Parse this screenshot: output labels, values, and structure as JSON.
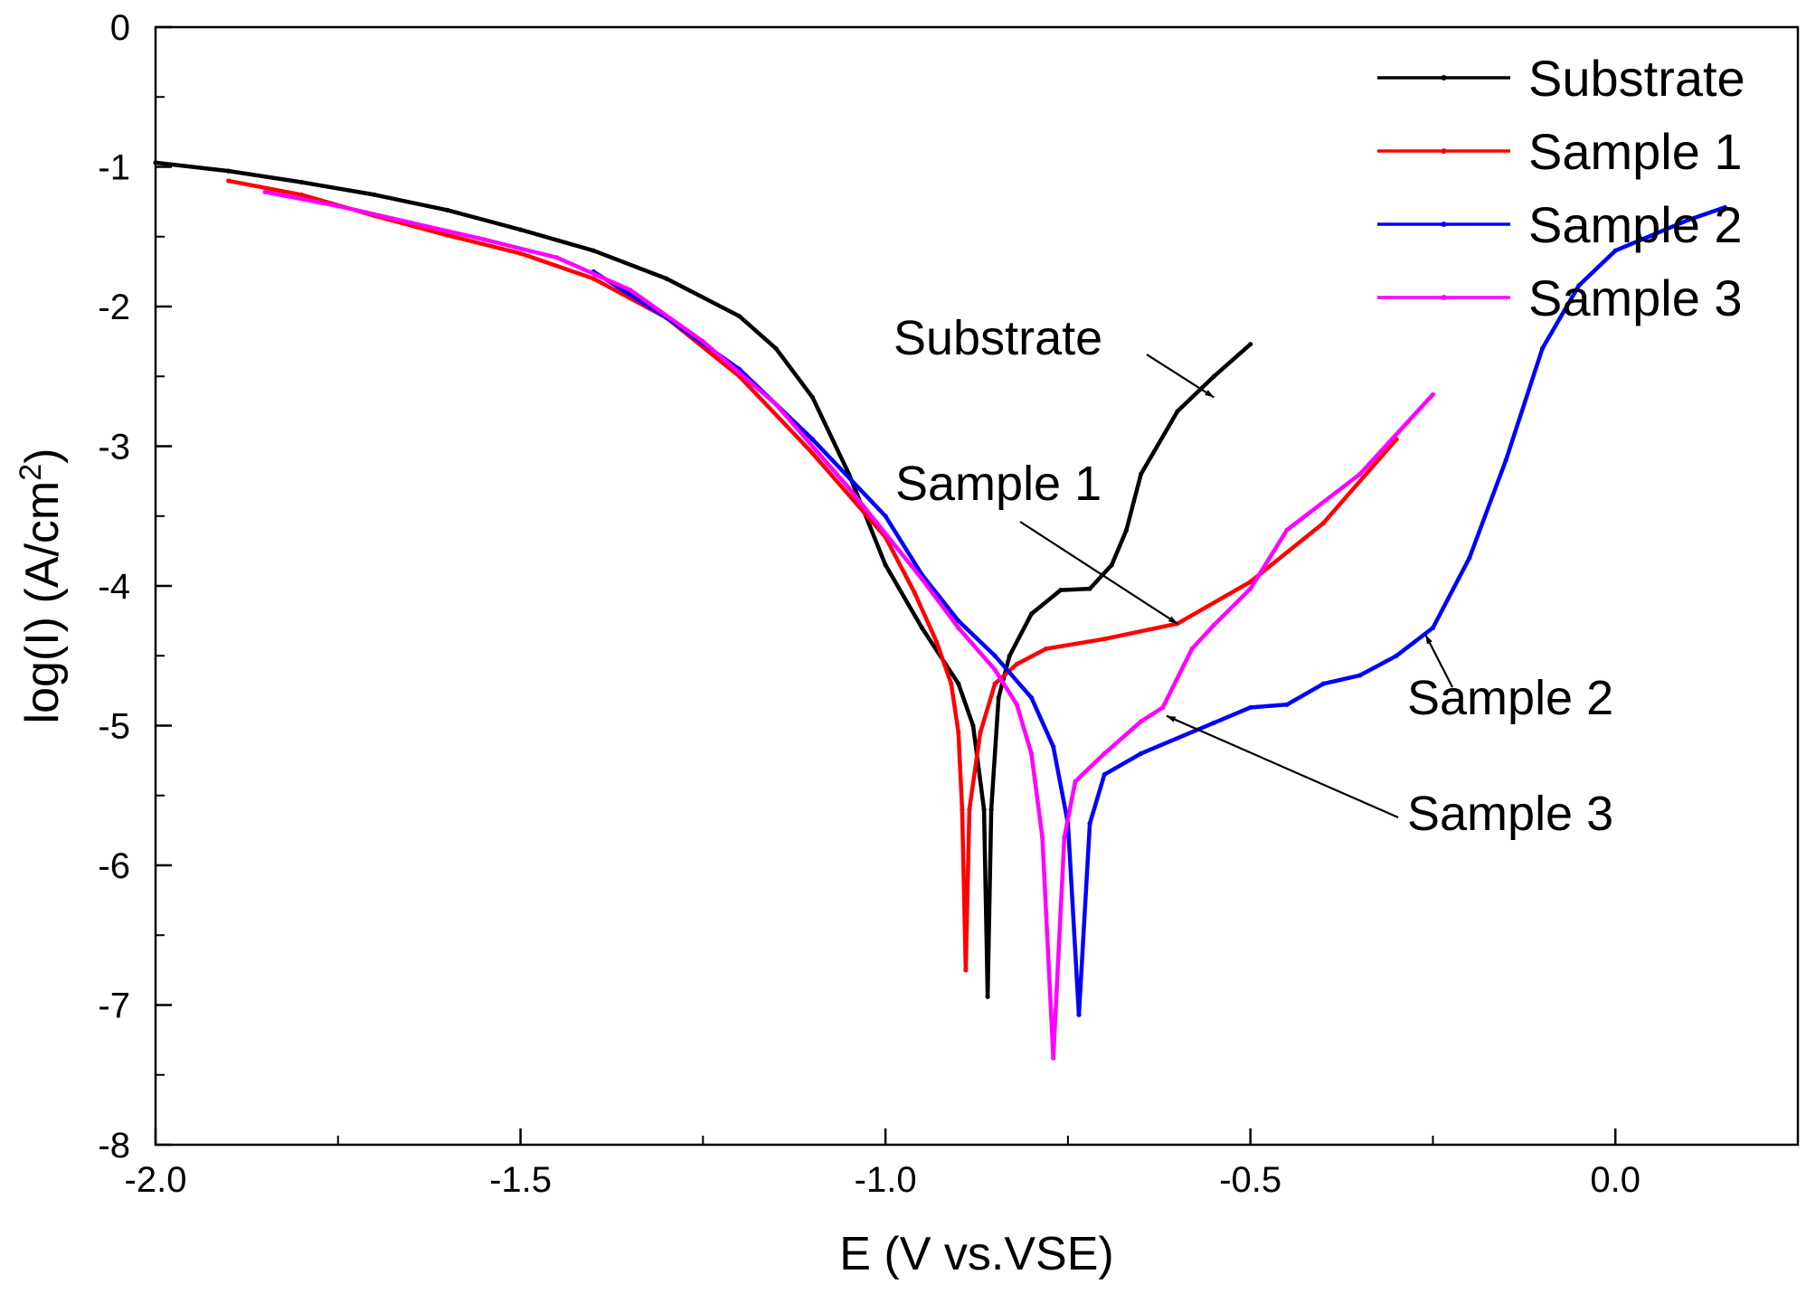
{
  "chart_data": {
    "type": "line",
    "title": "",
    "xlabel": "E (V vs.VSE)",
    "ylabel_main": "log(I) (A/cm",
    "ylabel_sup": "2",
    "ylabel_tail": ")",
    "xlim": [
      -2.0,
      0.25
    ],
    "ylim": [
      -8,
      0
    ],
    "xticks": [
      -2.0,
      -1.5,
      -1.0,
      -0.5,
      0.0
    ],
    "xtick_labels": [
      "-2.0",
      "-1.5",
      "-1.0",
      "-0.5",
      "0.0"
    ],
    "yticks": [
      0,
      -1,
      -2,
      -3,
      -4,
      -5,
      -6,
      -7,
      -8
    ],
    "ytick_labels": [
      "0",
      "-1",
      "-2",
      "-3",
      "-4",
      "-5",
      "-6",
      "-7",
      "-8"
    ],
    "legend_position": "top-right",
    "series": [
      {
        "name": "Substrate",
        "color": "#000000",
        "points": [
          [
            -2.0,
            -0.97
          ],
          [
            -1.9,
            -1.03
          ],
          [
            -1.8,
            -1.11
          ],
          [
            -1.7,
            -1.2
          ],
          [
            -1.6,
            -1.31
          ],
          [
            -1.5,
            -1.45
          ],
          [
            -1.4,
            -1.6
          ],
          [
            -1.3,
            -1.8
          ],
          [
            -1.2,
            -2.07
          ],
          [
            -1.15,
            -2.3
          ],
          [
            -1.1,
            -2.65
          ],
          [
            -1.05,
            -3.2
          ],
          [
            -1.0,
            -3.85
          ],
          [
            -0.95,
            -4.3
          ],
          [
            -0.9,
            -4.7
          ],
          [
            -0.88,
            -5.0
          ],
          [
            -0.865,
            -5.6
          ],
          [
            -0.86,
            -6.94
          ],
          [
            -0.855,
            -5.6
          ],
          [
            -0.845,
            -4.8
          ],
          [
            -0.83,
            -4.5
          ],
          [
            -0.8,
            -4.2
          ],
          [
            -0.76,
            -4.03
          ],
          [
            -0.72,
            -4.02
          ],
          [
            -0.69,
            -3.85
          ],
          [
            -0.67,
            -3.6
          ],
          [
            -0.65,
            -3.2
          ],
          [
            -0.6,
            -2.75
          ],
          [
            -0.55,
            -2.5
          ],
          [
            -0.5,
            -2.27
          ]
        ]
      },
      {
        "name": "Sample 1",
        "color": "#ff0000",
        "points": [
          [
            -1.9,
            -1.1
          ],
          [
            -1.8,
            -1.2
          ],
          [
            -1.7,
            -1.35
          ],
          [
            -1.6,
            -1.49
          ],
          [
            -1.5,
            -1.62
          ],
          [
            -1.4,
            -1.8
          ],
          [
            -1.3,
            -2.08
          ],
          [
            -1.2,
            -2.5
          ],
          [
            -1.1,
            -3.05
          ],
          [
            -1.0,
            -3.65
          ],
          [
            -0.96,
            -4.05
          ],
          [
            -0.93,
            -4.4
          ],
          [
            -0.91,
            -4.7
          ],
          [
            -0.9,
            -5.05
          ],
          [
            -0.895,
            -5.6
          ],
          [
            -0.89,
            -6.75
          ],
          [
            -0.885,
            -5.6
          ],
          [
            -0.87,
            -5.05
          ],
          [
            -0.85,
            -4.7
          ],
          [
            -0.82,
            -4.56
          ],
          [
            -0.78,
            -4.45
          ],
          [
            -0.7,
            -4.38
          ],
          [
            -0.6,
            -4.27
          ],
          [
            -0.5,
            -3.97
          ],
          [
            -0.4,
            -3.55
          ],
          [
            -0.3,
            -2.95
          ]
        ]
      },
      {
        "name": "Sample 2",
        "color": "#0000ff",
        "points": [
          [
            -1.4,
            -1.75
          ],
          [
            -1.3,
            -2.08
          ],
          [
            -1.2,
            -2.45
          ],
          [
            -1.1,
            -2.95
          ],
          [
            -1.0,
            -3.5
          ],
          [
            -0.95,
            -3.92
          ],
          [
            -0.9,
            -4.25
          ],
          [
            -0.85,
            -4.5
          ],
          [
            -0.8,
            -4.8
          ],
          [
            -0.77,
            -5.15
          ],
          [
            -0.75,
            -5.7
          ],
          [
            -0.735,
            -7.07
          ],
          [
            -0.72,
            -5.7
          ],
          [
            -0.7,
            -5.35
          ],
          [
            -0.65,
            -5.2
          ],
          [
            -0.55,
            -4.98
          ],
          [
            -0.5,
            -4.87
          ],
          [
            -0.45,
            -4.85
          ],
          [
            -0.4,
            -4.7
          ],
          [
            -0.35,
            -4.64
          ],
          [
            -0.3,
            -4.5
          ],
          [
            -0.25,
            -4.3
          ],
          [
            -0.2,
            -3.8
          ],
          [
            -0.15,
            -3.1
          ],
          [
            -0.1,
            -2.3
          ],
          [
            -0.05,
            -1.85
          ],
          [
            0.0,
            -1.6
          ],
          [
            0.1,
            -1.38
          ],
          [
            0.15,
            -1.29
          ]
        ]
      },
      {
        "name": "Sample 3",
        "color": "#ff00ff",
        "points": [
          [
            -1.85,
            -1.18
          ],
          [
            -1.75,
            -1.28
          ],
          [
            -1.65,
            -1.4
          ],
          [
            -1.55,
            -1.52
          ],
          [
            -1.45,
            -1.65
          ],
          [
            -1.35,
            -1.88
          ],
          [
            -1.25,
            -2.25
          ],
          [
            -1.15,
            -2.7
          ],
          [
            -1.05,
            -3.3
          ],
          [
            -0.95,
            -3.95
          ],
          [
            -0.9,
            -4.3
          ],
          [
            -0.85,
            -4.6
          ],
          [
            -0.82,
            -4.85
          ],
          [
            -0.8,
            -5.2
          ],
          [
            -0.785,
            -5.8
          ],
          [
            -0.77,
            -7.38
          ],
          [
            -0.755,
            -5.8
          ],
          [
            -0.74,
            -5.4
          ],
          [
            -0.7,
            -5.2
          ],
          [
            -0.65,
            -4.97
          ],
          [
            -0.62,
            -4.87
          ],
          [
            -0.58,
            -4.45
          ],
          [
            -0.55,
            -4.28
          ],
          [
            -0.5,
            -4.02
          ],
          [
            -0.45,
            -3.6
          ],
          [
            -0.35,
            -3.2
          ],
          [
            -0.25,
            -2.63
          ]
        ]
      }
    ],
    "annotations": [
      {
        "text": "Substrate",
        "series": "Substrate",
        "target": [
          -0.55,
          -2.65
        ]
      },
      {
        "text": "Sample 1",
        "series": "Sample 1",
        "target": [
          -0.6,
          -4.27
        ]
      },
      {
        "text": "Sample 2",
        "series": "Sample 2",
        "target": [
          -0.26,
          -4.35
        ]
      },
      {
        "text": "Sample 3",
        "series": "Sample 3",
        "target": [
          -0.615,
          -4.93
        ]
      }
    ]
  }
}
